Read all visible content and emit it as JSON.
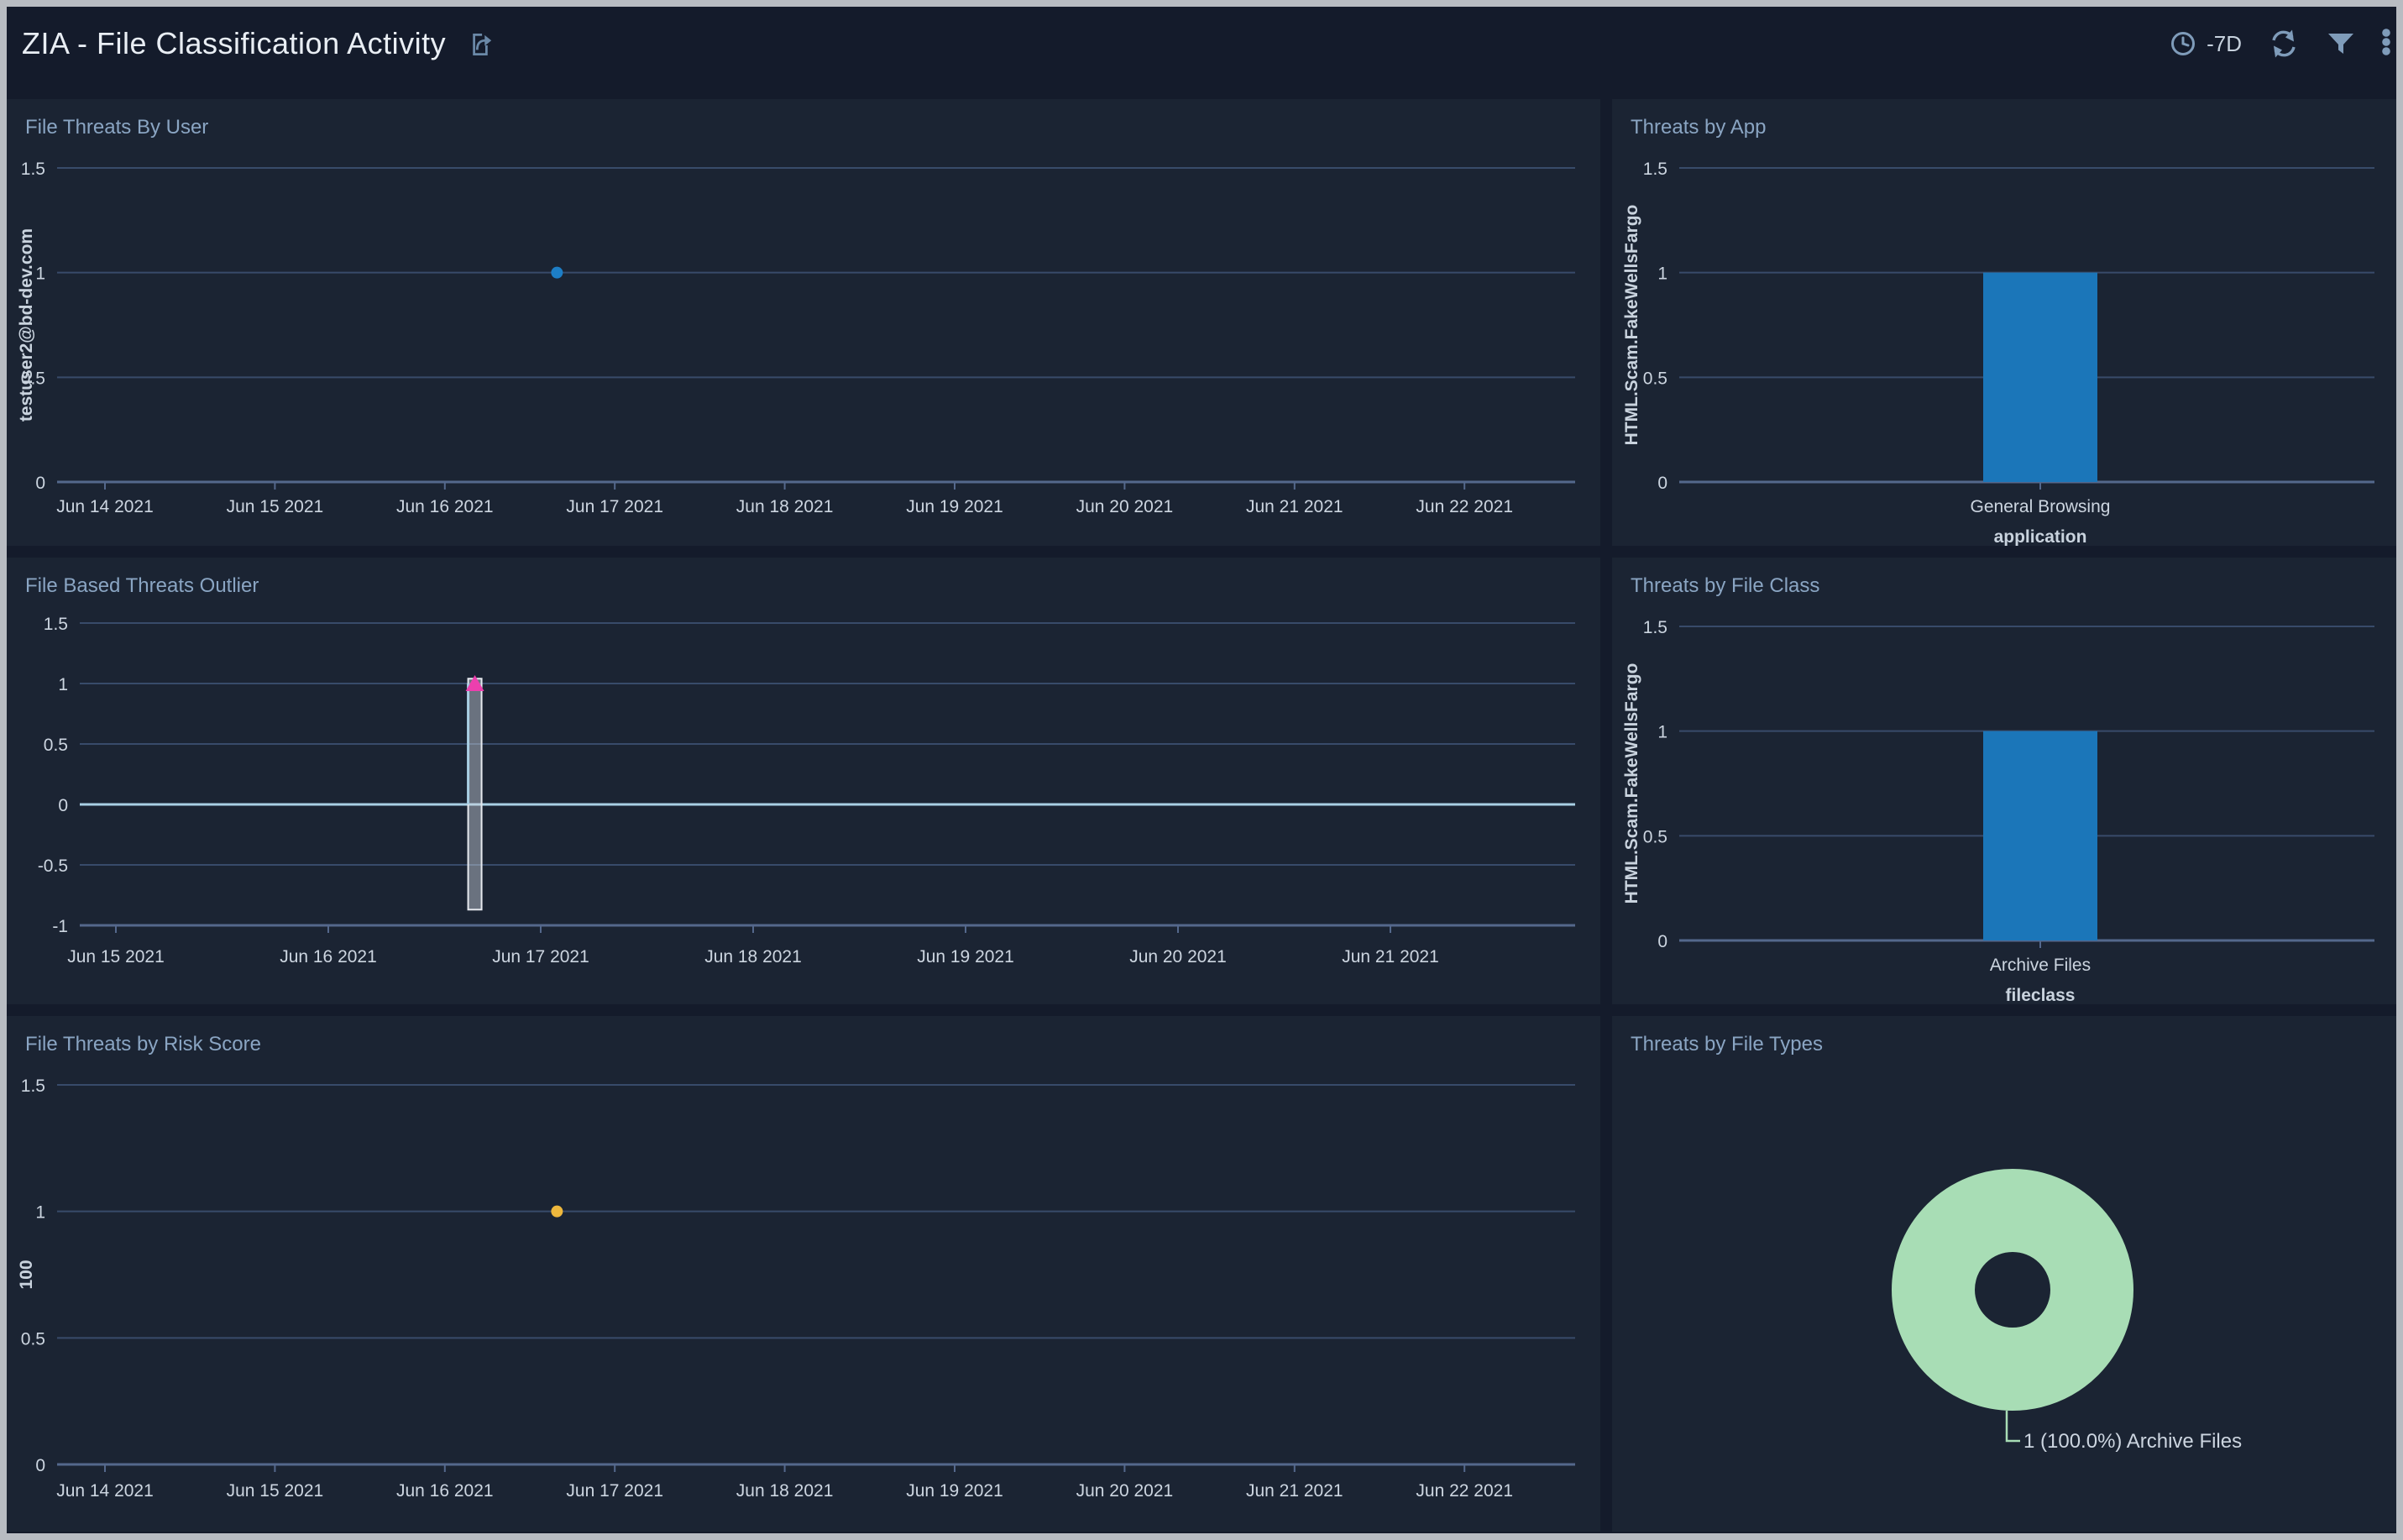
{
  "header": {
    "title": "ZIA - File Classification Activity",
    "time_range": "-7D",
    "icons": [
      "share-icon",
      "clock-icon",
      "refresh-icon",
      "filter-icon",
      "kebab-menu-icon"
    ]
  },
  "colors": {
    "page_bg": "#141b2b",
    "panel_bg": "#1b2433",
    "frame": "#b8bcc2",
    "header_text": "#e9eef4",
    "panel_title": "#8aa5c3",
    "tick_text": "#ccd5e0",
    "axis_label_text": "#c9d3de",
    "gridline": "#384b6a",
    "axis_line": "#54688c",
    "bar": "#1b76b9",
    "point_blue": "#1d7ec6",
    "point_yellow": "#eeb83d",
    "outlier_marker": "#ec3fae",
    "series_line": "#a9cfe4",
    "band_fill": "rgba(205,210,220,0.45)",
    "band_stroke": "#e6e9ef",
    "donut_green": "#a8ddb5",
    "icon": "#7f9cba"
  },
  "panels": [
    {
      "id": "file-threats-by-user",
      "title": "File Threats By User",
      "chart_data": {
        "type": "scatter",
        "ylabel": "testuser2@bd-dev.com",
        "ylim": [
          0,
          1.5
        ],
        "yticks": [
          "0",
          "0.5",
          "1",
          "1.5"
        ],
        "xticks": [
          "Jun 14 2021",
          "Jun 15 2021",
          "Jun 16 2021",
          "Jun 17 2021",
          "Jun 18 2021",
          "Jun 19 2021",
          "Jun 20 2021",
          "Jun 21 2021",
          "Jun 22 2021"
        ],
        "points": [
          {
            "date": "Jun 16 2021",
            "value": 1,
            "day_offset": 2.66,
            "color": "#1d7ec6"
          }
        ],
        "grid": true
      }
    },
    {
      "id": "threats-by-app",
      "title": "Threats by App",
      "chart_data": {
        "type": "bar",
        "ylabel": "HTML.Scam.FakeWellsFargo",
        "xlabel": "application",
        "ylim": [
          0,
          1.5
        ],
        "yticks": [
          "0",
          "0.5",
          "1",
          "1.5"
        ],
        "categories": [
          "General Browsing"
        ],
        "values": [
          1
        ],
        "grid": true
      }
    },
    {
      "id": "file-based-threats-outlier",
      "title": "File Based Threats Outlier",
      "chart_data": {
        "type": "outlier-line",
        "ylim": [
          -1,
          1.5
        ],
        "yticks": [
          "-1",
          "-0.5",
          "0",
          "0.5",
          "1",
          "1.5"
        ],
        "xticks": [
          "Jun 15 2021",
          "Jun 16 2021",
          "Jun 17 2021",
          "Jun 18 2021",
          "Jun 19 2021",
          "Jun 20 2021",
          "Jun 21 2021"
        ],
        "baseline_value": 0,
        "outlier": {
          "date": "Jun 16 2021",
          "value": 1,
          "day_offset": 1.69,
          "band_top": 1.04,
          "band_bottom": -0.87
        },
        "grid": true
      }
    },
    {
      "id": "threats-by-file-class",
      "title": "Threats by File Class",
      "chart_data": {
        "type": "bar",
        "ylabel": "HTML.Scam.FakeWellsFargo",
        "xlabel": "fileclass",
        "ylim": [
          0,
          1.5
        ],
        "yticks": [
          "0",
          "0.5",
          "1",
          "1.5"
        ],
        "categories": [
          "Archive Files"
        ],
        "values": [
          1
        ],
        "grid": true
      }
    },
    {
      "id": "file-threats-by-risk-score",
      "title": "File Threats by Risk Score",
      "chart_data": {
        "type": "scatter",
        "ylabel": "100",
        "ylim": [
          0,
          1.5
        ],
        "yticks": [
          "0",
          "0.5",
          "1",
          "1.5"
        ],
        "xticks": [
          "Jun 14 2021",
          "Jun 15 2021",
          "Jun 16 2021",
          "Jun 17 2021",
          "Jun 18 2021",
          "Jun 19 2021",
          "Jun 20 2021",
          "Jun 21 2021",
          "Jun 22 2021"
        ],
        "points": [
          {
            "date": "Jun 16 2021",
            "value": 1,
            "day_offset": 2.66,
            "color": "#eeb83d"
          }
        ],
        "grid": true
      }
    },
    {
      "id": "threats-by-file-types",
      "title": "Threats by File Types",
      "chart_data": {
        "type": "donut",
        "slices": [
          {
            "label": "Archive Files",
            "count": 1,
            "percent": "100.0%",
            "color": "#a8ddb5"
          }
        ],
        "annotation": "1 (100.0%) Archive Files"
      }
    }
  ]
}
